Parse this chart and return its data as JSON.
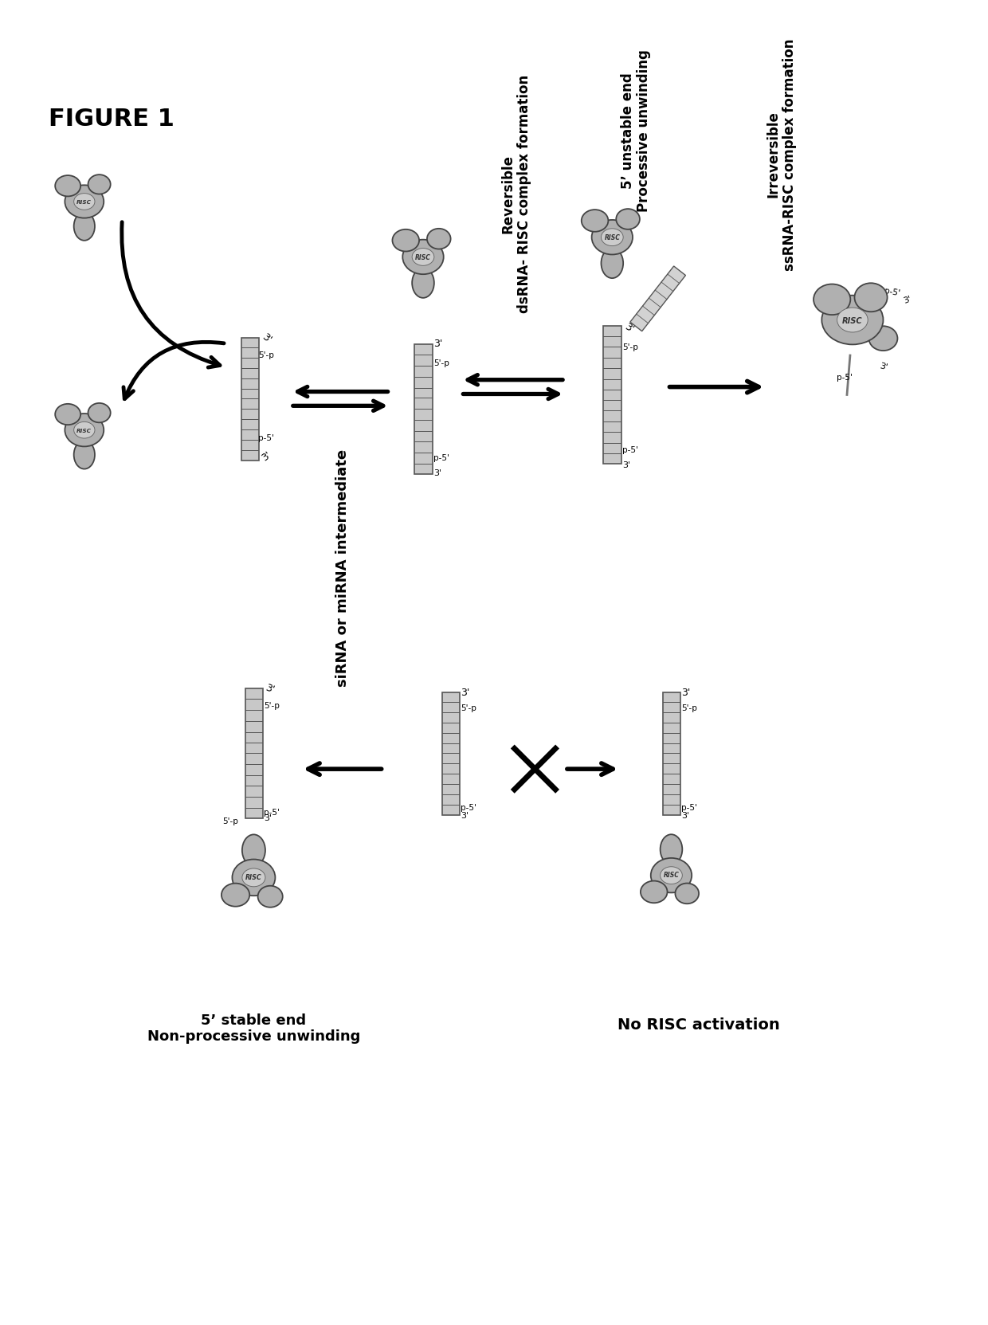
{
  "title": "FIGURE 1",
  "background_color": "#ffffff",
  "fig_width": 12.4,
  "fig_height": 16.63,
  "labels": {
    "figure_title": "FIGURE 1",
    "sirna_label": "siRNA or miRNA intermediate",
    "reversible_label": "Reversible\ndsRNA- RISC complex formation",
    "unstable_label": "5’ unstable end\nProcessive unwinding",
    "stable_label": "5’ stable end\nNon-processive unwinding",
    "irreversible_label": "Irreversible\nssRNA-RISC complex formation",
    "no_risc_label": "No RISC activation"
  },
  "colors": {
    "risc_gray": "#b0b0b0",
    "risc_light": "#cccccc",
    "risc_dark": "#888888",
    "dsrna_fill": "#c8c8c8",
    "dsrna_edge": "#555555",
    "background": "#ffffff",
    "text": "#000000",
    "arrow": "#000000"
  }
}
